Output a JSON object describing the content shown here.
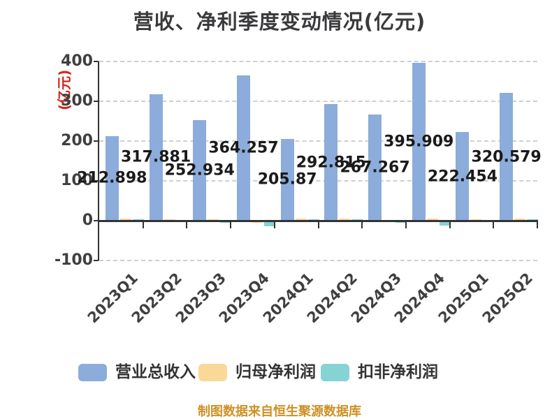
{
  "title": "营收、净利季度变动情况(亿元)",
  "y_axis_unit": "(亿元)",
  "caption": "制图数据来自恒生聚源数据库",
  "colors": {
    "revenue_blue": "#8CACDB",
    "net_profit_orange": "#FAD998",
    "deducted_profit_teal": "#85D3D3",
    "title_text": "#3A3A3C",
    "axis_line": "#333333",
    "gridline": "#CFCFCF",
    "unit_label_red": "#D02A20",
    "caption_gold": "#CE9022",
    "bar_label_text": "#1A1A1A"
  },
  "legend": {
    "items": [
      {
        "label": "营业总收入",
        "color": "#8CACDB"
      },
      {
        "label": "归母净利润",
        "color": "#FAD998"
      },
      {
        "label": "扣非净利润",
        "color": "#85D3D3"
      }
    ]
  },
  "chart_data": {
    "type": "bar",
    "title": "营收、净利季度变动情况(亿元)",
    "ylabel": "(亿元)",
    "categories": [
      "2023Q1",
      "2023Q2",
      "2023Q3",
      "2023Q4",
      "2024Q1",
      "2024Q2",
      "2024Q3",
      "2024Q4",
      "2025Q1",
      "2025Q2"
    ],
    "series": [
      {
        "name": "营业总收入",
        "color": "#8CACDB",
        "values": [
          212.898,
          317.881,
          252.934,
          364.257,
          205.87,
          292.815,
          267.267,
          395.909,
          222.454,
          320.579
        ],
        "labels_visible": true
      },
      {
        "name": "归母净利润",
        "color": "#FAD998",
        "values": [
          5,
          4,
          3,
          -2,
          5,
          6,
          1,
          5,
          4,
          6
        ],
        "labels_visible": false
      },
      {
        "name": "扣非净利润",
        "color": "#85D3D3",
        "values": [
          4,
          2,
          -2,
          -13,
          3,
          3,
          -3,
          -11,
          1,
          4
        ],
        "labels_visible": false
      }
    ],
    "ylim": [
      -100,
      400
    ],
    "yticks": [
      400,
      300,
      200,
      100,
      0,
      -100
    ],
    "grid": "horizontal dashed",
    "legend_position": "bottom",
    "x_label_rotation": 45
  }
}
